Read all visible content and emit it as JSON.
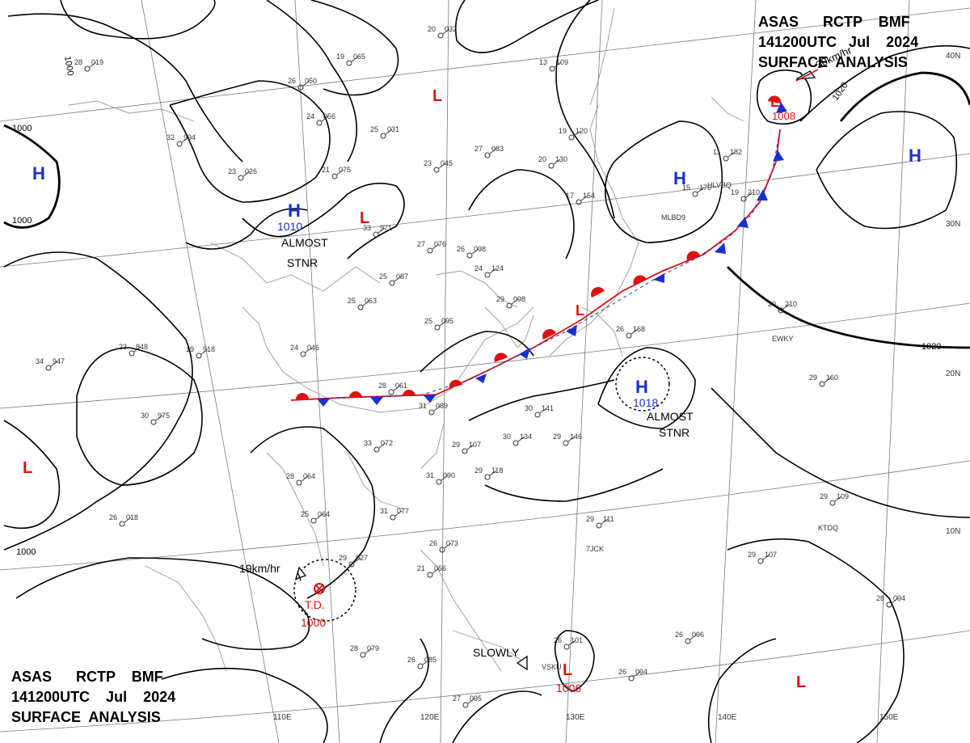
{
  "header_top": {
    "line1": "ASAS      RCTP    BMF",
    "line2": "141200UTC   Jul    2024",
    "line3": "SURFACE  ANALYSIS"
  },
  "header_bottom": {
    "line1": "ASAS      RCTP    BMF",
    "line2": "141200UTC    Jul    2024",
    "line3": "SURFACE  ANALYSIS"
  },
  "lon_labels": [
    "110E",
    "120E",
    "130E",
    "140E",
    "150E"
  ],
  "lat_labels": [
    "40N",
    "30N",
    "20N",
    "10N"
  ],
  "isobar_labels": [
    "1000",
    "1000",
    "1000",
    "1000",
    "1020",
    "1020"
  ],
  "pressure_systems": [
    {
      "id": "h-west",
      "type": "H",
      "pressure": ""
    },
    {
      "id": "h-mongolia",
      "type": "H",
      "pressure": "1010"
    },
    {
      "id": "h-japan-sea",
      "type": "H",
      "pressure": ""
    },
    {
      "id": "h-pacific",
      "type": "H",
      "pressure": ""
    },
    {
      "id": "h-south",
      "type": "H",
      "pressure": "1018"
    },
    {
      "id": "l-north",
      "type": "L",
      "pressure": ""
    },
    {
      "id": "l-china",
      "type": "L",
      "pressure": ""
    },
    {
      "id": "l-kamchatka",
      "type": "L",
      "pressure": "1008"
    },
    {
      "id": "l-front",
      "type": "L",
      "pressure": ""
    },
    {
      "id": "l-bay",
      "type": "L",
      "pressure": ""
    },
    {
      "id": "l-philippines",
      "type": "L",
      "pressure": "1006"
    },
    {
      "id": "l-pacific-se",
      "type": "L",
      "pressure": ""
    }
  ],
  "tropical_depression": {
    "label": "T.D.",
    "pressure": "1000",
    "motion": "19km/hr"
  },
  "annotations": {
    "almost_stnr_1": "ALMOST",
    "almost_stnr_1b": "STNR",
    "almost_stnr_2": "ALMOST",
    "almost_stnr_2b": "STNR",
    "slowly": "SLOWLY",
    "kamchatka_motion": "30km/hr"
  },
  "station_idents": [
    "HLVBQ",
    "MLBD9",
    "EWKY",
    "KTDQ",
    "7JCK",
    "VSKU"
  ],
  "station_plots": [
    {
      "t": "28",
      "p": "019"
    },
    {
      "t": "26",
      "p": "050"
    },
    {
      "t": "19",
      "p": "065"
    },
    {
      "t": "20",
      "p": "032"
    },
    {
      "t": "24",
      "p": "056"
    },
    {
      "t": "25",
      "p": "031"
    },
    {
      "t": "32",
      "p": "994"
    },
    {
      "t": "21",
      "p": "075"
    },
    {
      "t": "23",
      "p": "026"
    },
    {
      "t": "33",
      "p": "971"
    },
    {
      "t": "27",
      "p": "083"
    },
    {
      "t": "23",
      "p": "045"
    },
    {
      "t": "13",
      "p": "109"
    },
    {
      "t": "19",
      "p": "120"
    },
    {
      "t": "20",
      "p": "130"
    },
    {
      "t": "17",
      "p": "154"
    },
    {
      "t": "11",
      "p": "182"
    },
    {
      "t": "15",
      "p": "176"
    },
    {
      "t": "19",
      "p": "210"
    },
    {
      "t": "26",
      "p": "098"
    },
    {
      "t": "27",
      "p": "076"
    },
    {
      "t": "25",
      "p": "087"
    },
    {
      "t": "24",
      "p": "124"
    },
    {
      "t": "29",
      "p": "098"
    },
    {
      "t": "25",
      "p": "063"
    },
    {
      "t": "25",
      "p": "095"
    },
    {
      "t": "24",
      "p": "046"
    },
    {
      "t": "23",
      "p": "848"
    },
    {
      "t": "19",
      "p": "918"
    },
    {
      "t": "34",
      "p": "947"
    },
    {
      "t": "30",
      "p": "975"
    },
    {
      "t": "28",
      "p": "061"
    },
    {
      "t": "31",
      "p": "089"
    },
    {
      "t": "30",
      "p": "141"
    },
    {
      "t": "30",
      "p": "134"
    },
    {
      "t": "29",
      "p": "146"
    },
    {
      "t": "33",
      "p": "072"
    },
    {
      "t": "29",
      "p": "107"
    },
    {
      "t": "31",
      "p": "090"
    },
    {
      "t": "29",
      "p": "118"
    },
    {
      "t": "29",
      "p": "160"
    },
    {
      "t": "26",
      "p": "168"
    },
    {
      "t": "20",
      "p": "210"
    },
    {
      "t": "26",
      "p": "018"
    },
    {
      "t": "25",
      "p": "064"
    },
    {
      "t": "31",
      "p": "077"
    },
    {
      "t": "29",
      "p": "027"
    },
    {
      "t": "28",
      "p": "064"
    },
    {
      "t": "28",
      "p": "079"
    },
    {
      "t": "26",
      "p": "085"
    },
    {
      "t": "27",
      "p": "095"
    },
    {
      "t": "26",
      "p": "073"
    },
    {
      "t": "21",
      "p": "056"
    },
    {
      "t": "29",
      "p": "111"
    },
    {
      "t": "29",
      "p": "107"
    },
    {
      "t": "29",
      "p": "109"
    },
    {
      "t": "26",
      "p": "094"
    },
    {
      "t": "26",
      "p": "096"
    },
    {
      "t": "28",
      "p": "094"
    },
    {
      "t": "26",
      "p": "101"
    }
  ],
  "colors": {
    "warm": "#e01010",
    "cold": "#1a2fd0",
    "isobar": "#000000",
    "coast": "#9a9a9a",
    "grid": "#7a7a7a"
  }
}
